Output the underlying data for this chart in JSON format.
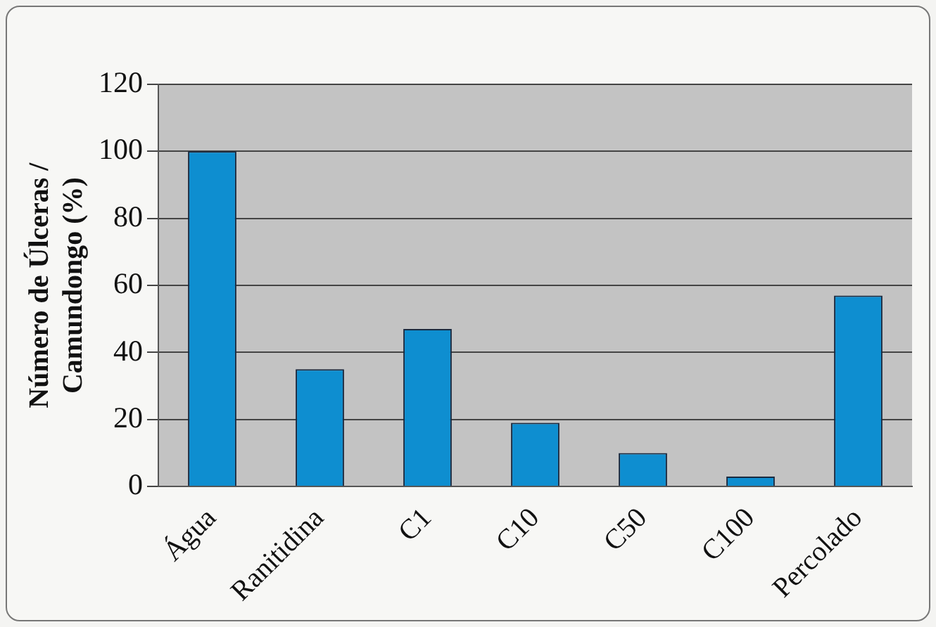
{
  "chart_data": {
    "type": "bar",
    "ylabel": "Número de Úlceras / Camundongo (%)",
    "categories": [
      "Água",
      "Ranitidina",
      "C1",
      "C10",
      "C50",
      "C100",
      "Percolado"
    ],
    "values": [
      100,
      35,
      47,
      19,
      10,
      3,
      57
    ],
    "color": "#0e8ed0",
    "ylim": [
      0,
      120
    ],
    "yticks": [
      0,
      20,
      40,
      60,
      80,
      100,
      120
    ],
    "grid": "y",
    "legend": false
  }
}
